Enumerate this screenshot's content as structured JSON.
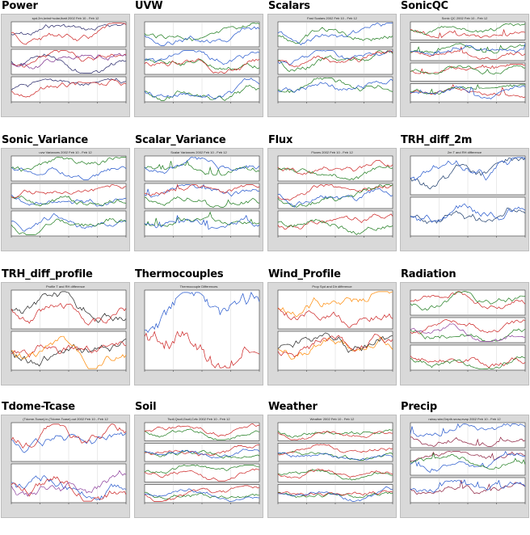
{
  "tiles": [
    {
      "title": "Power",
      "subtitle": "spd.2m,Iwind+solar,Ibatt 2002 Feb 10 - Feb 12",
      "panels": 3,
      "scheme": "power"
    },
    {
      "title": "UVW",
      "subtitle": "",
      "panels": 3,
      "scheme": "uvw"
    },
    {
      "title": "Scalars",
      "subtitle": "Fast Scalars 2002 Feb 10 - Feb 12",
      "panels": 3,
      "scheme": "scalars"
    },
    {
      "title": "SonicQC",
      "subtitle": "Sonic QC 2002 Feb 10 - Feb 12",
      "panels": 4,
      "scheme": "qc"
    },
    {
      "title": "Sonic_Variance",
      "subtitle": "uvw Variances 2002 Feb 10 - Feb 12",
      "panels": 3,
      "scheme": "var"
    },
    {
      "title": "Scalar_Variance",
      "subtitle": "Scalar Variances 2002 Feb 10 - Feb 12",
      "panels": 3,
      "scheme": "svar"
    },
    {
      "title": "Flux",
      "subtitle": "Fluxes 2002 Feb 10 - Feb 12",
      "panels": 3,
      "scheme": "flux"
    },
    {
      "title": "TRH_diff_2m",
      "subtitle": "2m T and RH difference",
      "panels": 2,
      "scheme": "trh"
    },
    {
      "title": "TRH_diff_profile",
      "subtitle": "Profile T and RH difference",
      "panels": 2,
      "scheme": "trhp"
    },
    {
      "title": "Thermocouples",
      "subtitle": "Thermocouple Differences",
      "panels": 1,
      "scheme": "tc"
    },
    {
      "title": "Wind_Profile",
      "subtitle": "Prop Spd and Dir difference",
      "panels": 2,
      "scheme": "wind"
    },
    {
      "title": "Radiation",
      "subtitle": "",
      "panels": 3,
      "scheme": "rad"
    },
    {
      "title": "Tdome-Tcase",
      "subtitle": "(Tdome-Tcase).in,(Tdome-Tcase).out 2002 Feb 10 - Feb 12",
      "panels": 2,
      "scheme": "tdome"
    },
    {
      "title": "Soil",
      "subtitle": "Tsoil,Qsoil,Gsoil,Cvfc 2002 Feb 10 - Feb 12",
      "panels": 4,
      "scheme": "soil"
    },
    {
      "title": "Weather",
      "subtitle": "Weather 2002 Feb 10 - Feb 12",
      "panels": 4,
      "scheme": "weather"
    },
    {
      "title": "Precip",
      "subtitle": "raina,rainr,Depth.snow,evap 2002 Feb 10 - Feb 12",
      "panels": 3,
      "scheme": "precip"
    }
  ]
}
